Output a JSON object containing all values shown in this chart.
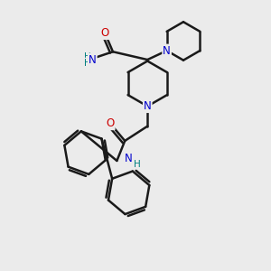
{
  "bg_color": "#ebebeb",
  "atom_color_N": "#0000cc",
  "atom_color_O": "#cc0000",
  "atom_color_H": "#008080",
  "bond_color": "#1a1a1a",
  "bond_width": 1.8,
  "font_size": 8.5,
  "font_size_small": 7.5,
  "xlim": [
    0,
    10
  ],
  "ylim": [
    0,
    10
  ]
}
